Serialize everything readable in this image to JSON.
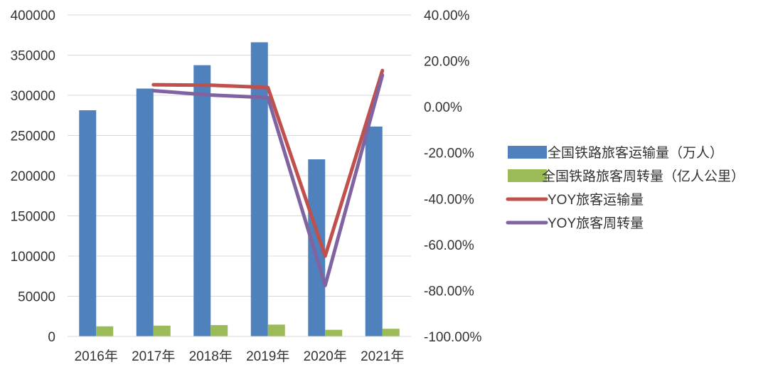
{
  "chart_data": {
    "type": "bar",
    "categories": [
      "2016年",
      "2017年",
      "2018年",
      "2019年",
      "2020年",
      "2021年"
    ],
    "series": [
      {
        "name": "全国铁路旅客运输量（万人）",
        "kind": "bar",
        "axis": "left",
        "color": "#4F81BD",
        "values": [
          281405,
          308379,
          337495,
          366002,
          220350,
          261171
        ]
      },
      {
        "name": "全国铁路旅客周转量（亿人公里）",
        "kind": "bar",
        "axis": "left",
        "color": "#9BBB59",
        "values": [
          12579,
          13457,
          14147,
          14707,
          8266,
          9568
        ]
      },
      {
        "name": "YOY旅客运输量",
        "kind": "line",
        "axis": "right",
        "color": "#C0504D",
        "values": [
          null,
          9.6,
          9.4,
          8.4,
          -65.0,
          15.8
        ]
      },
      {
        "name": "YOY旅客周转量",
        "kind": "line",
        "axis": "right",
        "color": "#8064A2",
        "values": [
          null,
          7.0,
          5.1,
          4.0,
          -77.8,
          13.8
        ]
      }
    ],
    "y_left": {
      "ylim": [
        0,
        400000
      ],
      "ticks": [
        "0",
        "50000",
        "100000",
        "150000",
        "200000",
        "250000",
        "300000",
        "350000",
        "400000"
      ]
    },
    "y_right": {
      "ylim": [
        -100,
        40
      ],
      "unit": "%",
      "ticks": [
        "-100.00%",
        "-80.00%",
        "-60.00%",
        "-40.00%",
        "-20.00%",
        "0.00%",
        "20.00%",
        "40.00%"
      ]
    },
    "grid": true,
    "legend_position": "right"
  }
}
